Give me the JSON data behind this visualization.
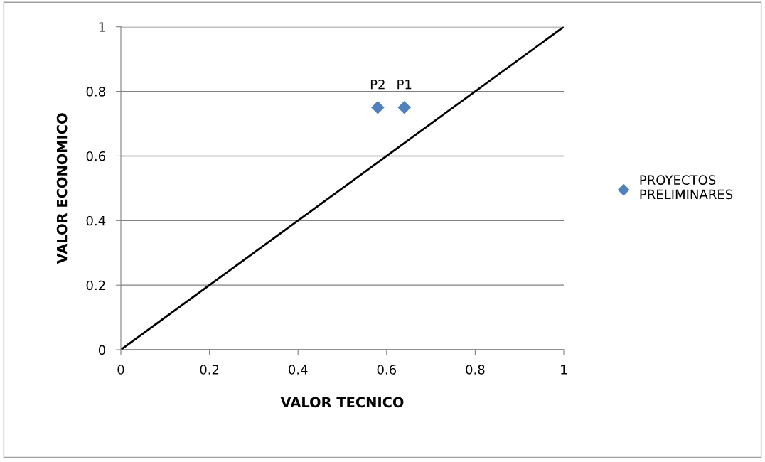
{
  "chart_data": {
    "type": "scatter",
    "xlabel": "VALOR TECNICO",
    "ylabel": "VALOR ECONOMICO",
    "x": [
      0.64,
      0.58
    ],
    "series": [
      {
        "name": "PROYECTOS PRELIMINARES",
        "color": "#4f81bd",
        "values": [
          0.75,
          0.75
        ],
        "marker": "diamond"
      },
      {
        "type": "line",
        "color": "#000000",
        "x": [
          0,
          1
        ],
        "values": [
          0,
          1
        ],
        "marker": "none",
        "line_style": "solid"
      }
    ],
    "annotations": [
      {
        "text": "P1",
        "x": 0.64,
        "y": 0.75
      },
      {
        "text": "P2",
        "x": 0.58,
        "y": 0.75
      }
    ],
    "xlim": [
      0,
      1
    ],
    "ylim": [
      0,
      1
    ],
    "xticks": [
      0,
      0.2,
      0.4,
      0.6,
      0.8,
      1
    ],
    "yticks": [
      0,
      0.2,
      0.4,
      0.6,
      0.8,
      1
    ],
    "grid": "y",
    "legend": "right"
  }
}
